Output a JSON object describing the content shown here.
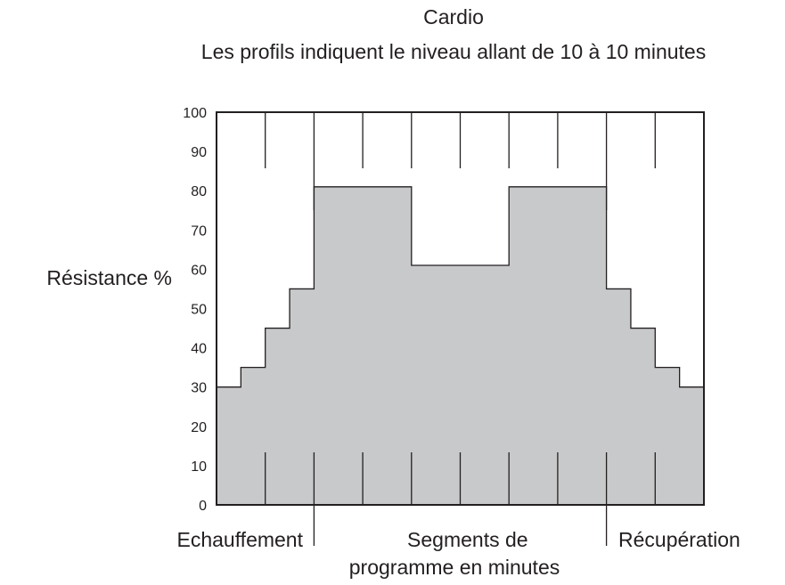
{
  "chart_data": {
    "type": "area",
    "title": "Cardio",
    "subtitle": "Les profils indiquent le niveau allant de 10 à 10 minutes",
    "ylabel": "Résistance %",
    "xlabel": "",
    "ylim": [
      0,
      100
    ],
    "yticks": [
      0,
      10,
      20,
      30,
      40,
      50,
      60,
      70,
      80,
      90,
      100
    ],
    "xlim": [
      0,
      100
    ],
    "fill_color": "#c8c9cb",
    "line_color": "#231f20",
    "steps": [
      {
        "x0": 0,
        "x1": 5,
        "y": 30
      },
      {
        "x0": 5,
        "x1": 10,
        "y": 35
      },
      {
        "x0": 10,
        "x1": 15,
        "y": 45
      },
      {
        "x0": 15,
        "x1": 20,
        "y": 55
      },
      {
        "x0": 20,
        "x1": 40,
        "y": 81
      },
      {
        "x0": 40,
        "x1": 60,
        "y": 61
      },
      {
        "x0": 60,
        "x1": 80,
        "y": 81
      },
      {
        "x0": 80,
        "x1": 85,
        "y": 55
      },
      {
        "x0": 85,
        "x1": 90,
        "y": 45
      },
      {
        "x0": 90,
        "x1": 95,
        "y": 35
      },
      {
        "x0": 95,
        "x1": 100,
        "y": 30
      }
    ],
    "section_dividers": [
      20,
      80
    ],
    "segment_marks": [
      10,
      20,
      30,
      40,
      50,
      60,
      70,
      80,
      90
    ],
    "sections": [
      {
        "label": "Echauffement",
        "lines": [
          "Echauffement"
        ]
      },
      {
        "label": "Segments de programme en minutes",
        "lines": [
          "Segments de",
          "programme en minutes"
        ]
      },
      {
        "label": "Récupération",
        "lines": [
          "Récupération"
        ]
      }
    ]
  }
}
